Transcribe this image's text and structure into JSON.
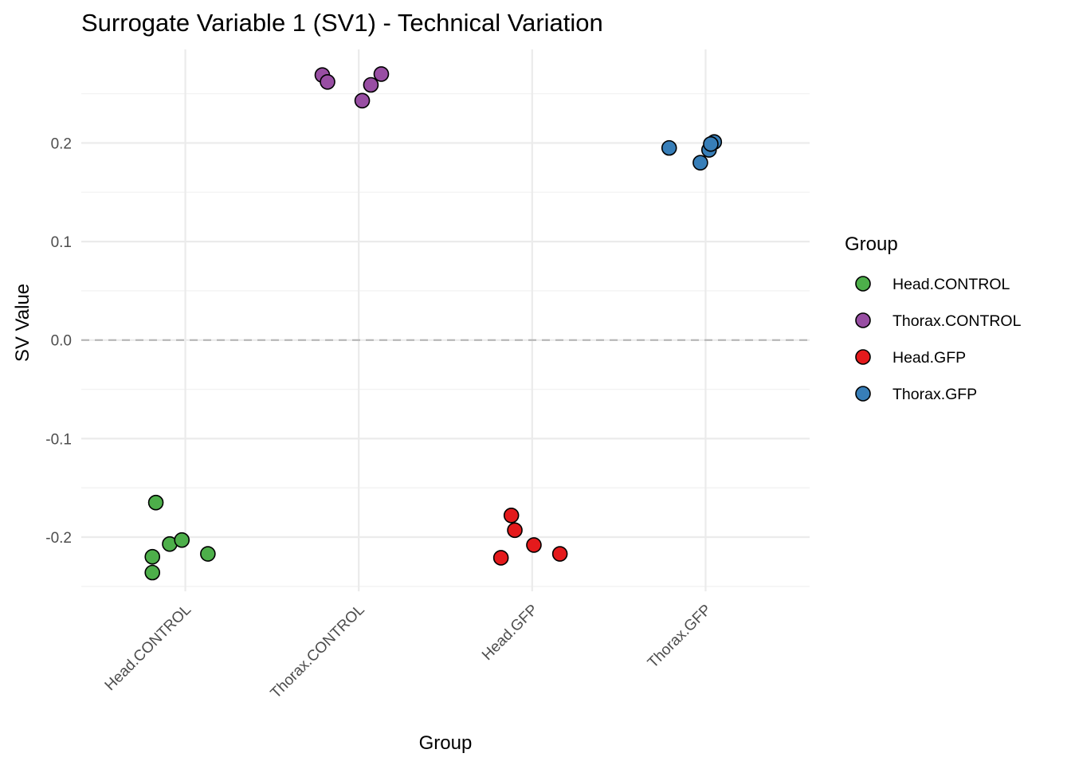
{
  "chart_data": {
    "type": "scatter",
    "title": "Surrogate Variable 1 (SV1) - Technical Variation",
    "xlabel": "Group",
    "ylabel": "SV Value",
    "categories": [
      "Head.CONTROL",
      "Thorax.CONTROL",
      "Head.GFP",
      "Thorax.GFP"
    ],
    "ylim": [
      -0.255,
      0.295
    ],
    "yticks": [
      -0.2,
      -0.1,
      0.0,
      0.1,
      0.2
    ],
    "ytick_labels": [
      "-0.2",
      "-0.1",
      "0.0",
      "0.1",
      "0.2"
    ],
    "reference_line": {
      "y": 0.0,
      "style": "dashed"
    },
    "grid": true,
    "legend": {
      "title": "Group",
      "placement": "right",
      "entries": [
        {
          "label": "Head.CONTROL",
          "color": "#4daf4a"
        },
        {
          "label": "Thorax.CONTROL",
          "color": "#984ea3"
        },
        {
          "label": "Head.GFP",
          "color": "#e41a1c"
        },
        {
          "label": "Thorax.GFP",
          "color": "#377eb8"
        }
      ]
    },
    "series": [
      {
        "name": "Head.CONTROL",
        "color": "#4daf4a",
        "x": [
          0.83,
          0.81,
          0.81,
          0.91,
          0.98,
          1.13
        ],
        "y": [
          -0.165,
          -0.22,
          -0.236,
          -0.207,
          -0.203,
          -0.217
        ]
      },
      {
        "name": "Thorax.CONTROL",
        "color": "#984ea3",
        "x": [
          1.79,
          1.82,
          2.02,
          2.07,
          2.13
        ],
        "y": [
          0.269,
          0.262,
          0.243,
          0.259,
          0.27
        ]
      },
      {
        "name": "Head.GFP",
        "color": "#e41a1c",
        "x": [
          2.88,
          2.9,
          2.82,
          3.01,
          3.16
        ],
        "y": [
          -0.178,
          -0.193,
          -0.221,
          -0.208,
          -0.217
        ]
      },
      {
        "name": "Thorax.GFP",
        "color": "#377eb8",
        "x": [
          3.79,
          3.97,
          4.02,
          4.05,
          4.03
        ],
        "y": [
          0.195,
          0.18,
          0.193,
          0.201,
          0.199
        ]
      }
    ]
  }
}
